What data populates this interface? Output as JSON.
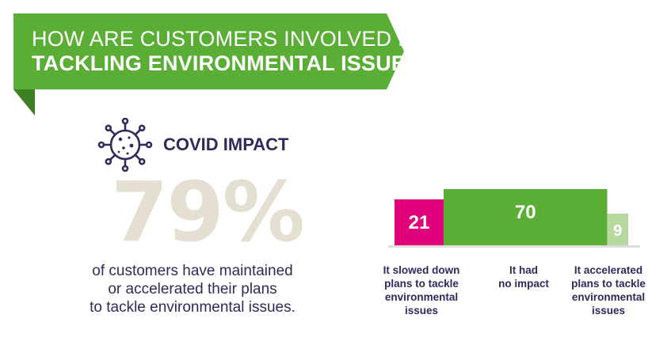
{
  "header": {
    "title_line_1": "HOW ARE CUSTOMERS INVOLVED IN",
    "title_line_2": "TACKLING ENVIRONMENTAL ISSUES?",
    "banner_color": "#5aae35",
    "banner_fold_color": "#3d7f24"
  },
  "section": {
    "icon": "virus-icon",
    "title": "COVID IMPACT"
  },
  "stat": {
    "value": "79%",
    "desc_lines": [
      "of customers have maintained",
      "or accelerated their plans",
      "to tackle environmental issues."
    ]
  },
  "chart_data": {
    "type": "bar",
    "categories": [
      "It slowed down plans to tackle environmental issues",
      "It had no impact",
      "It accelerated plans to tackle environmental issues"
    ],
    "category_lines": [
      [
        "It slowed down",
        "plans to tackle",
        "environmental",
        "issues"
      ],
      [
        "It had",
        "no impact"
      ],
      [
        "It accelerated",
        "plans to tackle",
        "environmental",
        "issues"
      ]
    ],
    "values": [
      21,
      70,
      9
    ],
    "colors": [
      "#e0007a",
      "#5aae35",
      "#b7d9a0"
    ],
    "value_labels": [
      "21",
      "70",
      "9"
    ],
    "ylim": [
      0,
      70
    ],
    "title": "",
    "xlabel": "",
    "ylabel": ""
  }
}
